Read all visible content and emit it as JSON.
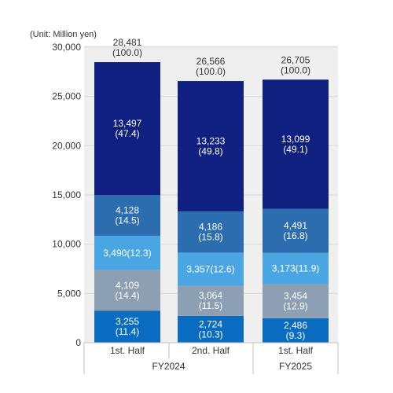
{
  "chart_data": {
    "type": "bar",
    "stacked": true,
    "unit_label": "(Unit: Million yen)",
    "yticks": [
      "0",
      "5,000",
      "10,000",
      "15,000",
      "20,000",
      "25,000",
      "30,000"
    ],
    "ylim": [
      0,
      30000
    ],
    "categories": [
      "1st. Half",
      "2nd. Half",
      "1st. Half"
    ],
    "groups": [
      {
        "label": "FY2024",
        "span": [
          0,
          1
        ]
      },
      {
        "label": "FY2025",
        "span": [
          2,
          2
        ]
      }
    ],
    "totals": [
      {
        "value": "28,481",
        "pct": "(100.0)"
      },
      {
        "value": "26,566",
        "pct": "(100.0)"
      },
      {
        "value": "26,705",
        "pct": "(100.0)"
      }
    ],
    "series": [
      {
        "color": "#0a6cc0",
        "values": [
          3255,
          2724,
          2486
        ],
        "labels": [
          [
            "3,255",
            "(11.4)"
          ],
          [
            "2,724",
            "(10.3)"
          ],
          [
            "2,486",
            "(9.3)"
          ]
        ]
      },
      {
        "color": "#8d9fb2",
        "values": [
          4109,
          3064,
          3454
        ],
        "labels": [
          [
            "4,109",
            "(14.4)"
          ],
          [
            "3,064",
            "(11.5)"
          ],
          [
            "3,454",
            "(12.9)"
          ]
        ]
      },
      {
        "color": "#4aa6e3",
        "values": [
          3490,
          3357,
          3173
        ],
        "labels": [
          [
            "3,490(12.3)"
          ],
          [
            "3,357(12.6)"
          ],
          [
            "3,173(11.9)"
          ]
        ]
      },
      {
        "color": "#2c6db0",
        "values": [
          4128,
          4186,
          4491
        ],
        "labels": [
          [
            "4,128",
            "(14.5)"
          ],
          [
            "4,186",
            "(15.8)"
          ],
          [
            "4,491",
            "(16.8)"
          ]
        ]
      },
      {
        "color": "#0f2080",
        "values": [
          13497,
          13233,
          13099
        ],
        "labels": [
          [
            "13,497",
            "(47.4)"
          ],
          [
            "13,233",
            "(49.8)"
          ],
          [
            "13,099",
            "(49.1)"
          ]
        ]
      }
    ],
    "grid": true
  }
}
